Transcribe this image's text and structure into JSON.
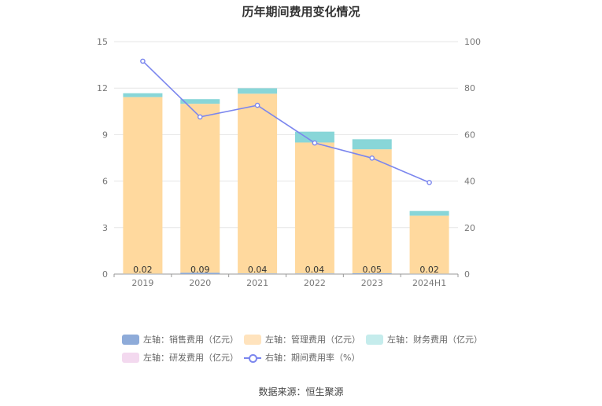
{
  "chart_data": {
    "type": "bar",
    "title": "历年期间费用变化情况",
    "categories": [
      "2019",
      "2020",
      "2021",
      "2022",
      "2023",
      "2024H1"
    ],
    "y_left": {
      "lim": [
        0,
        15
      ],
      "ticks": [
        "0",
        "3",
        "6",
        "9",
        "12",
        "15"
      ]
    },
    "y_right": {
      "lim": [
        0,
        100
      ],
      "ticks": [
        "0",
        "20",
        "40",
        "60",
        "80",
        "100"
      ]
    },
    "series": [
      {
        "name": "左轴：销售费用（亿元）",
        "axis": "left",
        "stack": true,
        "color": "#8eabd9",
        "values": [
          0.02,
          0.09,
          0.04,
          0.04,
          0.05,
          0.02
        ],
        "labels": [
          "0.02",
          "0.09",
          "0.04",
          "0.04",
          "0.05",
          "0.02"
        ]
      },
      {
        "name": "左轴：管理费用（亿元）",
        "axis": "left",
        "stack": true,
        "color": "#ffd99e",
        "values": [
          11.4,
          10.9,
          11.6,
          8.45,
          8.0,
          3.75
        ]
      },
      {
        "name": "左轴：财务费用（亿元）",
        "axis": "left",
        "stack": true,
        "color": "#88d6d8",
        "values": [
          0.25,
          0.3,
          0.35,
          0.7,
          0.65,
          0.3
        ]
      },
      {
        "name": "左轴：研发费用（亿元）",
        "axis": "left",
        "stack": true,
        "color": "#f3d9ef",
        "values": [
          0,
          0,
          0,
          0,
          0,
          0
        ]
      },
      {
        "name": "右轴：期间费用率（%）",
        "axis": "right",
        "type": "line",
        "color": "#7b86ee",
        "values": [
          91.6,
          67.6,
          72.6,
          56.4,
          49.9,
          39.4
        ]
      }
    ],
    "grid": true,
    "legend_position": "bottom"
  },
  "legend": [
    {
      "label": "左轴：销售费用（亿元）",
      "color": "#8eabd9",
      "kind": "box"
    },
    {
      "label": "左轴：管理费用（亿元）",
      "color": "#ffe3bd",
      "kind": "box"
    },
    {
      "label": "左轴：财务费用（亿元）",
      "color": "#c5ecec",
      "kind": "box"
    },
    {
      "label": "左轴：研发费用（亿元）",
      "color": "#f3d9ef",
      "kind": "box"
    },
    {
      "label": "右轴：期间费用率（%）",
      "color": "#7b86ee",
      "kind": "line"
    }
  ],
  "source": "数据来源：恒生聚源"
}
